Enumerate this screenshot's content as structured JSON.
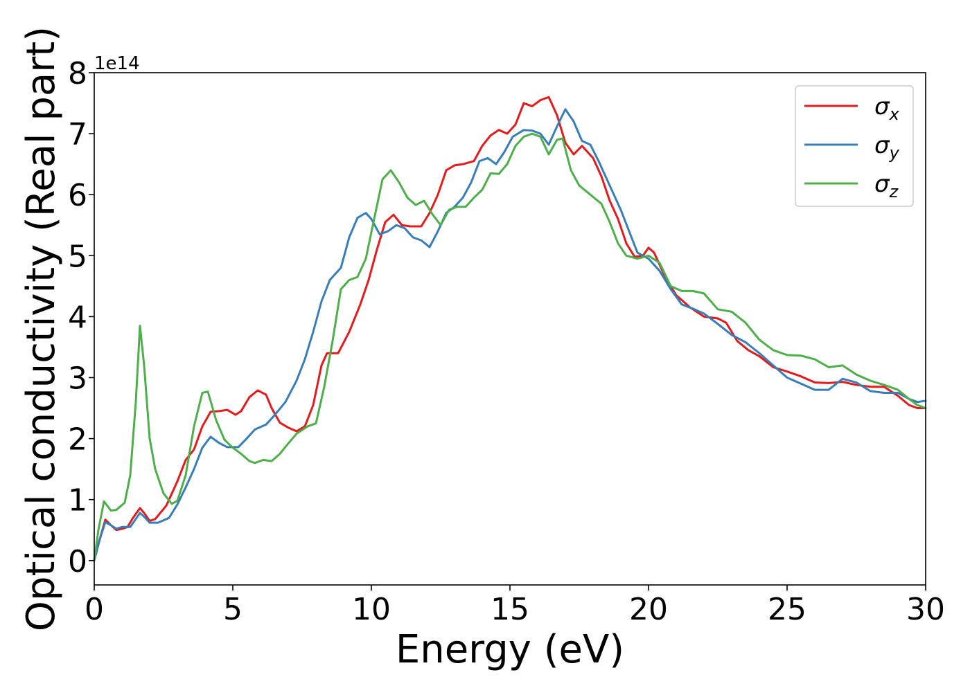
{
  "chart_data": {
    "type": "line",
    "title": "",
    "xlabel": "Energy (eV)",
    "ylabel": "Optical conductivity (Real part)",
    "y_offset_label": "1e14",
    "xlim": [
      0,
      30
    ],
    "ylim": [
      -0.4,
      8
    ],
    "y_scale": 100000000000000.0,
    "grid": false,
    "legend_placement": "top-right",
    "x_ticks": [
      0,
      5,
      10,
      15,
      20,
      25,
      30
    ],
    "x_tick_labels": [
      "0",
      "5",
      "10",
      "15",
      "20",
      "25",
      "30"
    ],
    "y_ticks": [
      0,
      1,
      2,
      3,
      4,
      5,
      6,
      7,
      8
    ],
    "y_tick_labels": [
      "0",
      "1",
      "2",
      "3",
      "4",
      "5",
      "6",
      "7",
      "8"
    ],
    "series": [
      {
        "name": "σx",
        "symbol": "σ",
        "subscript": "x",
        "color": "#e41a1c",
        "points": [
          [
            0,
            0
          ],
          [
            0.2,
            0.35
          ],
          [
            0.4,
            0.67
          ],
          [
            0.6,
            0.58
          ],
          [
            0.8,
            0.5
          ],
          [
            1.0,
            0.52
          ],
          [
            1.2,
            0.55
          ],
          [
            1.4,
            0.7
          ],
          [
            1.65,
            0.86
          ],
          [
            1.8,
            0.78
          ],
          [
            2.0,
            0.65
          ],
          [
            2.2,
            0.68
          ],
          [
            2.6,
            0.9
          ],
          [
            3.0,
            1.3
          ],
          [
            3.3,
            1.65
          ],
          [
            3.6,
            1.82
          ],
          [
            3.9,
            2.2
          ],
          [
            4.2,
            2.44
          ],
          [
            4.5,
            2.45
          ],
          [
            4.8,
            2.47
          ],
          [
            5.1,
            2.39
          ],
          [
            5.3,
            2.45
          ],
          [
            5.6,
            2.68
          ],
          [
            5.9,
            2.79
          ],
          [
            6.2,
            2.72
          ],
          [
            6.4,
            2.5
          ],
          [
            6.7,
            2.26
          ],
          [
            7.0,
            2.18
          ],
          [
            7.3,
            2.12
          ],
          [
            7.6,
            2.2
          ],
          [
            7.9,
            2.55
          ],
          [
            8.2,
            3.2
          ],
          [
            8.4,
            3.4
          ],
          [
            8.8,
            3.4
          ],
          [
            9.2,
            3.75
          ],
          [
            9.6,
            4.2
          ],
          [
            9.9,
            4.6
          ],
          [
            10.2,
            5.1
          ],
          [
            10.5,
            5.55
          ],
          [
            10.8,
            5.67
          ],
          [
            11.1,
            5.5
          ],
          [
            11.4,
            5.48
          ],
          [
            11.8,
            5.48
          ],
          [
            12.1,
            5.7
          ],
          [
            12.4,
            6.0
          ],
          [
            12.7,
            6.4
          ],
          [
            13.0,
            6.48
          ],
          [
            13.3,
            6.5
          ],
          [
            13.7,
            6.55
          ],
          [
            14.0,
            6.8
          ],
          [
            14.3,
            6.97
          ],
          [
            14.6,
            7.06
          ],
          [
            14.9,
            7.0
          ],
          [
            15.2,
            7.15
          ],
          [
            15.5,
            7.5
          ],
          [
            15.8,
            7.45
          ],
          [
            16.1,
            7.55
          ],
          [
            16.4,
            7.6
          ],
          [
            16.7,
            7.3
          ],
          [
            17.0,
            6.85
          ],
          [
            17.3,
            6.66
          ],
          [
            17.6,
            6.8
          ],
          [
            18.0,
            6.6
          ],
          [
            18.3,
            6.3
          ],
          [
            18.6,
            5.9
          ],
          [
            18.9,
            5.6
          ],
          [
            19.2,
            5.2
          ],
          [
            19.5,
            4.98
          ],
          [
            19.8,
            5.0
          ],
          [
            20.0,
            5.13
          ],
          [
            20.2,
            5.05
          ],
          [
            20.6,
            4.65
          ],
          [
            21.0,
            4.35
          ],
          [
            21.5,
            4.15
          ],
          [
            22.0,
            4.0
          ],
          [
            22.5,
            3.97
          ],
          [
            22.8,
            3.9
          ],
          [
            23.2,
            3.6
          ],
          [
            23.6,
            3.45
          ],
          [
            24.0,
            3.35
          ],
          [
            24.5,
            3.17
          ],
          [
            25.0,
            3.1
          ],
          [
            25.5,
            3.02
          ],
          [
            26.0,
            2.92
          ],
          [
            26.5,
            2.91
          ],
          [
            27.0,
            2.93
          ],
          [
            27.5,
            2.88
          ],
          [
            28.0,
            2.85
          ],
          [
            28.5,
            2.85
          ],
          [
            29.0,
            2.7
          ],
          [
            29.4,
            2.55
          ],
          [
            29.7,
            2.5
          ],
          [
            30.0,
            2.5
          ]
        ]
      },
      {
        "name": "σy",
        "symbol": "σ",
        "subscript": "y",
        "color": "#377eb8",
        "points": [
          [
            0,
            0
          ],
          [
            0.2,
            0.35
          ],
          [
            0.4,
            0.63
          ],
          [
            0.6,
            0.58
          ],
          [
            0.8,
            0.52
          ],
          [
            1.0,
            0.55
          ],
          [
            1.3,
            0.55
          ],
          [
            1.65,
            0.78
          ],
          [
            1.8,
            0.72
          ],
          [
            2.0,
            0.62
          ],
          [
            2.3,
            0.62
          ],
          [
            2.7,
            0.7
          ],
          [
            3.0,
            0.92
          ],
          [
            3.3,
            1.2
          ],
          [
            3.6,
            1.5
          ],
          [
            3.9,
            1.85
          ],
          [
            4.2,
            2.03
          ],
          [
            4.5,
            1.93
          ],
          [
            4.8,
            1.86
          ],
          [
            5.2,
            1.86
          ],
          [
            5.5,
            2.0
          ],
          [
            5.8,
            2.15
          ],
          [
            6.2,
            2.23
          ],
          [
            6.5,
            2.38
          ],
          [
            6.9,
            2.6
          ],
          [
            7.3,
            2.95
          ],
          [
            7.6,
            3.3
          ],
          [
            7.9,
            3.75
          ],
          [
            8.2,
            4.25
          ],
          [
            8.5,
            4.6
          ],
          [
            8.9,
            4.8
          ],
          [
            9.2,
            5.3
          ],
          [
            9.5,
            5.62
          ],
          [
            9.8,
            5.7
          ],
          [
            10.0,
            5.6
          ],
          [
            10.3,
            5.35
          ],
          [
            10.6,
            5.4
          ],
          [
            10.9,
            5.5
          ],
          [
            11.2,
            5.45
          ],
          [
            11.5,
            5.3
          ],
          [
            11.8,
            5.25
          ],
          [
            12.1,
            5.14
          ],
          [
            12.4,
            5.4
          ],
          [
            12.7,
            5.7
          ],
          [
            13.0,
            5.8
          ],
          [
            13.3,
            5.95
          ],
          [
            13.6,
            6.2
          ],
          [
            13.9,
            6.55
          ],
          [
            14.2,
            6.6
          ],
          [
            14.5,
            6.5
          ],
          [
            14.8,
            6.7
          ],
          [
            15.1,
            6.95
          ],
          [
            15.5,
            7.06
          ],
          [
            15.8,
            7.05
          ],
          [
            16.1,
            7.0
          ],
          [
            16.4,
            6.82
          ],
          [
            16.7,
            7.12
          ],
          [
            17.0,
            7.4
          ],
          [
            17.3,
            7.2
          ],
          [
            17.6,
            6.88
          ],
          [
            17.9,
            6.82
          ],
          [
            18.2,
            6.55
          ],
          [
            18.6,
            6.15
          ],
          [
            19.0,
            5.75
          ],
          [
            19.3,
            5.4
          ],
          [
            19.6,
            5.05
          ],
          [
            20.0,
            4.95
          ],
          [
            20.4,
            4.75
          ],
          [
            20.8,
            4.45
          ],
          [
            21.2,
            4.2
          ],
          [
            21.6,
            4.13
          ],
          [
            22.0,
            4.05
          ],
          [
            22.5,
            3.88
          ],
          [
            23.0,
            3.7
          ],
          [
            23.5,
            3.58
          ],
          [
            24.0,
            3.4
          ],
          [
            24.5,
            3.2
          ],
          [
            25.0,
            3.0
          ],
          [
            25.5,
            2.9
          ],
          [
            26.0,
            2.8
          ],
          [
            26.5,
            2.8
          ],
          [
            27.0,
            2.98
          ],
          [
            27.5,
            2.92
          ],
          [
            28.0,
            2.78
          ],
          [
            28.5,
            2.75
          ],
          [
            29.0,
            2.75
          ],
          [
            29.4,
            2.65
          ],
          [
            29.7,
            2.6
          ],
          [
            30.0,
            2.62
          ]
        ]
      },
      {
        "name": "σz",
        "symbol": "σ",
        "subscript": "z",
        "color": "#4daf4a",
        "points": [
          [
            0,
            0
          ],
          [
            0.15,
            0.5
          ],
          [
            0.35,
            0.97
          ],
          [
            0.6,
            0.82
          ],
          [
            0.8,
            0.83
          ],
          [
            1.1,
            0.95
          ],
          [
            1.3,
            1.4
          ],
          [
            1.5,
            2.6
          ],
          [
            1.65,
            3.85
          ],
          [
            1.8,
            3.2
          ],
          [
            2.0,
            2.0
          ],
          [
            2.2,
            1.5
          ],
          [
            2.5,
            1.1
          ],
          [
            2.8,
            0.93
          ],
          [
            3.0,
            0.98
          ],
          [
            3.3,
            1.4
          ],
          [
            3.6,
            2.2
          ],
          [
            3.9,
            2.75
          ],
          [
            4.1,
            2.77
          ],
          [
            4.4,
            2.3
          ],
          [
            4.7,
            1.98
          ],
          [
            5.0,
            1.85
          ],
          [
            5.3,
            1.75
          ],
          [
            5.6,
            1.63
          ],
          [
            5.8,
            1.6
          ],
          [
            6.1,
            1.65
          ],
          [
            6.4,
            1.63
          ],
          [
            6.7,
            1.75
          ],
          [
            7.0,
            1.92
          ],
          [
            7.3,
            2.08
          ],
          [
            7.7,
            2.2
          ],
          [
            8.0,
            2.25
          ],
          [
            8.3,
            2.85
          ],
          [
            8.6,
            3.6
          ],
          [
            8.9,
            4.45
          ],
          [
            9.2,
            4.6
          ],
          [
            9.5,
            4.65
          ],
          [
            9.8,
            4.95
          ],
          [
            10.1,
            5.6
          ],
          [
            10.4,
            6.25
          ],
          [
            10.7,
            6.4
          ],
          [
            11.0,
            6.2
          ],
          [
            11.3,
            5.95
          ],
          [
            11.6,
            5.83
          ],
          [
            11.9,
            5.9
          ],
          [
            12.2,
            5.68
          ],
          [
            12.5,
            5.5
          ],
          [
            12.8,
            5.75
          ],
          [
            13.1,
            5.8
          ],
          [
            13.4,
            5.8
          ],
          [
            13.7,
            5.95
          ],
          [
            14.0,
            6.08
          ],
          [
            14.3,
            6.35
          ],
          [
            14.6,
            6.34
          ],
          [
            14.9,
            6.5
          ],
          [
            15.2,
            6.8
          ],
          [
            15.5,
            6.95
          ],
          [
            15.8,
            7.0
          ],
          [
            16.1,
            6.95
          ],
          [
            16.4,
            6.66
          ],
          [
            16.7,
            6.9
          ],
          [
            16.9,
            6.92
          ],
          [
            17.2,
            6.4
          ],
          [
            17.5,
            6.15
          ],
          [
            17.9,
            6.0
          ],
          [
            18.3,
            5.85
          ],
          [
            18.6,
            5.55
          ],
          [
            18.9,
            5.2
          ],
          [
            19.2,
            5.0
          ],
          [
            19.6,
            4.95
          ],
          [
            20.0,
            5.0
          ],
          [
            20.4,
            4.88
          ],
          [
            20.8,
            4.5
          ],
          [
            21.2,
            4.42
          ],
          [
            21.6,
            4.42
          ],
          [
            22.0,
            4.38
          ],
          [
            22.5,
            4.12
          ],
          [
            23.0,
            4.08
          ],
          [
            23.5,
            3.9
          ],
          [
            24.0,
            3.62
          ],
          [
            24.5,
            3.45
          ],
          [
            25.0,
            3.37
          ],
          [
            25.5,
            3.36
          ],
          [
            26.0,
            3.3
          ],
          [
            26.5,
            3.17
          ],
          [
            27.0,
            3.2
          ],
          [
            27.5,
            3.05
          ],
          [
            28.0,
            2.95
          ],
          [
            28.5,
            2.88
          ],
          [
            29.0,
            2.8
          ],
          [
            29.4,
            2.65
          ],
          [
            29.7,
            2.55
          ],
          [
            30.0,
            2.5
          ]
        ]
      }
    ]
  }
}
